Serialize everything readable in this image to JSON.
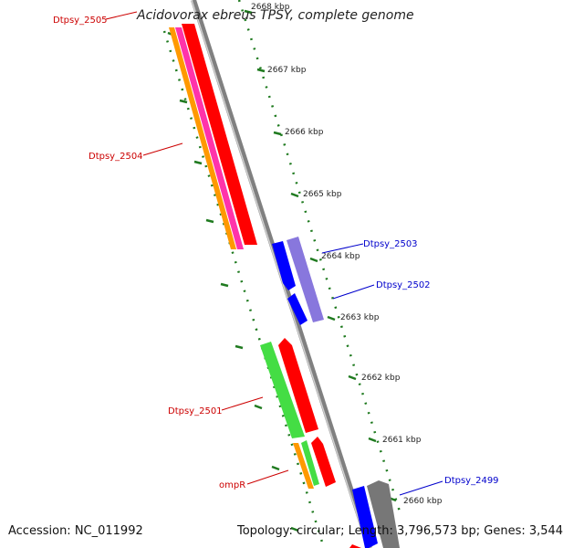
{
  "title": "Acidovorax ebreus TPSY, complete genome",
  "footer": {
    "accession": "Accession: NC_011992",
    "summary": "Topology: circular; Length: 3,796,573 bp; Genes: 3,544"
  },
  "colors": {
    "backbone": "#808080",
    "tick": "#1f7a1f",
    "forward_gene_label": "#cc0000",
    "reverse_gene_label": "#0000cc",
    "red": "#ff0000",
    "orange": "#ff9900",
    "magenta": "#ff33aa",
    "blue": "#0000ff",
    "violet": "#8877dd",
    "green": "#44dd44",
    "gray": "#777777"
  },
  "scale_labels": [
    "2668 kbp",
    "2667 kbp",
    "2666 kbp",
    "2665 kbp",
    "2664 kbp",
    "2663 kbp",
    "2662 kbp",
    "2661 kbp",
    "2660 kbp"
  ],
  "gene_labels": [
    {
      "text": "Dtpsy_2505",
      "strand": "forward"
    },
    {
      "text": "Dtpsy_2504",
      "strand": "forward"
    },
    {
      "text": "Dtpsy_2503",
      "strand": "reverse"
    },
    {
      "text": "Dtpsy_2502",
      "strand": "reverse"
    },
    {
      "text": "Dtpsy_2501",
      "strand": "forward"
    },
    {
      "text": "ompR",
      "strand": "forward"
    },
    {
      "text": "Dtpsy_2499",
      "strand": "reverse"
    }
  ]
}
